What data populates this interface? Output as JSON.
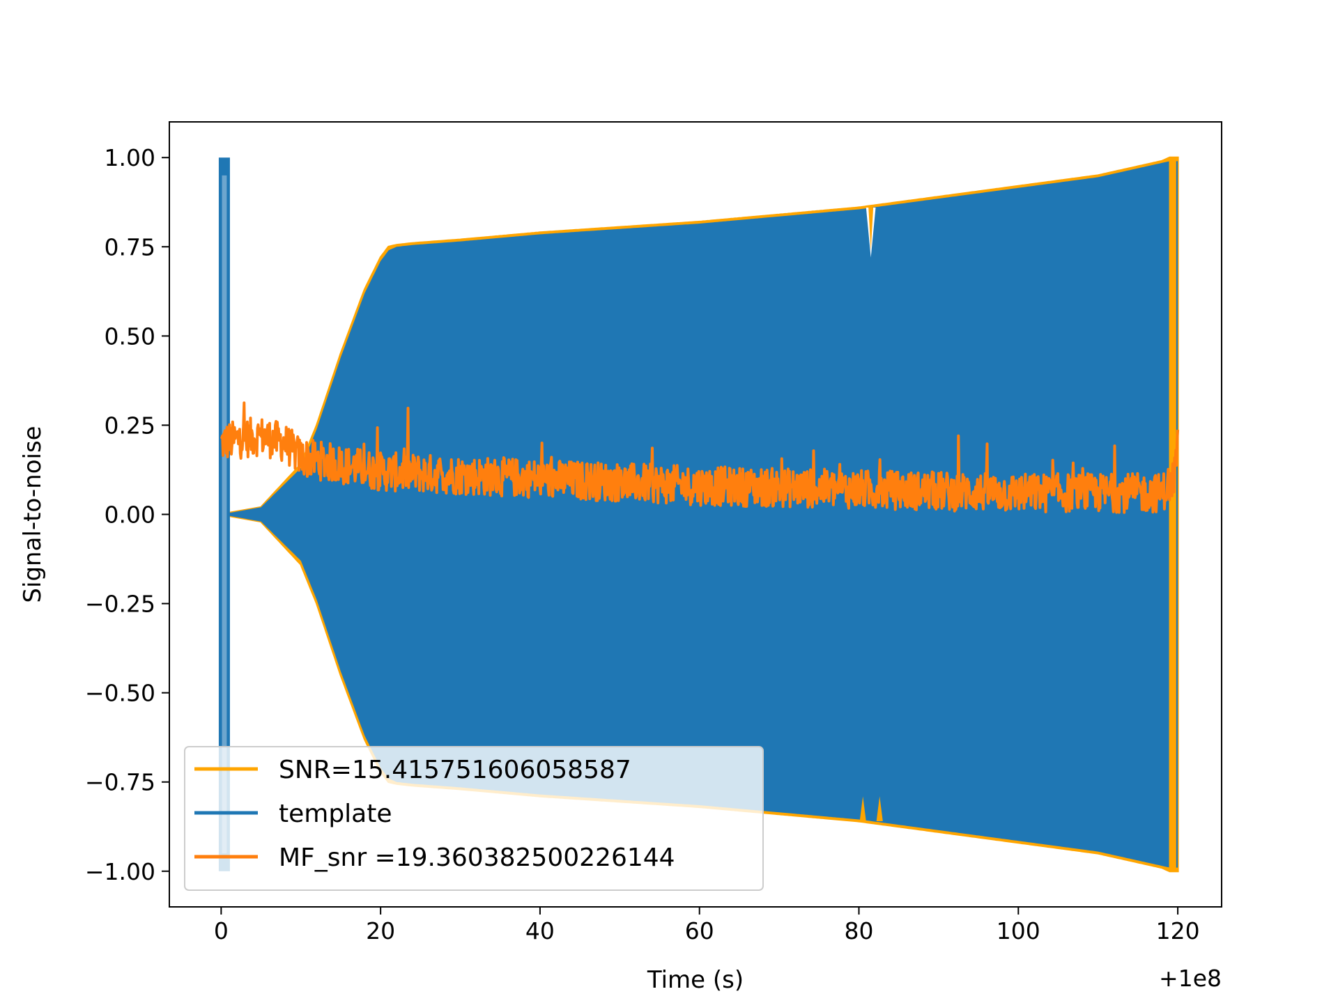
{
  "chart_data": {
    "type": "line",
    "title": "",
    "xlabel": "Time (s)",
    "ylabel": "Signal-to-noise",
    "x_offset_label": "+1e8",
    "xlim": [
      -6.5,
      125.5
    ],
    "ylim": [
      -1.1,
      1.1
    ],
    "x_ticks": [
      {
        "value": 0,
        "label": "0"
      },
      {
        "value": 20,
        "label": "20"
      },
      {
        "value": 40,
        "label": "40"
      },
      {
        "value": 60,
        "label": "60"
      },
      {
        "value": 80,
        "label": "80"
      },
      {
        "value": 100,
        "label": "100"
      },
      {
        "value": 120,
        "label": "120"
      }
    ],
    "y_ticks": [
      {
        "value": 1.0,
        "label": "1.00"
      },
      {
        "value": 0.75,
        "label": "0.75"
      },
      {
        "value": 0.5,
        "label": "0.50"
      },
      {
        "value": 0.25,
        "label": "0.25"
      },
      {
        "value": 0.0,
        "label": "0.00"
      },
      {
        "value": -0.25,
        "label": "−0.25"
      },
      {
        "value": -0.5,
        "label": "−0.50"
      },
      {
        "value": -0.75,
        "label": "−0.75"
      },
      {
        "value": -1.0,
        "label": "−1.00"
      }
    ],
    "grid": false,
    "legend_position": "lower-left",
    "series": [
      {
        "name": "SNR=15.415751606058587",
        "color": "#ffa500",
        "kind": "oscillating-envelope",
        "envelope_x": [
          0,
          5,
          10,
          12,
          15,
          18,
          20,
          21,
          22,
          24,
          30,
          40,
          60,
          80,
          100,
          110,
          118,
          119,
          119.5,
          120
        ],
        "envelope_y": [
          0.0,
          0.02,
          0.14,
          0.25,
          0.45,
          0.63,
          0.72,
          0.75,
          0.755,
          0.76,
          0.77,
          0.79,
          0.82,
          0.86,
          0.92,
          0.95,
          0.99,
          1.0,
          1.0,
          1.0
        ]
      },
      {
        "name": "template",
        "color": "#1f77b4",
        "kind": "oscillating-envelope",
        "envelope_x": [
          0,
          5,
          10,
          12,
          15,
          18,
          20,
          21,
          22,
          24,
          30,
          40,
          60,
          80,
          100,
          110,
          118,
          119,
          119.5,
          120
        ],
        "envelope_y": [
          0.0,
          0.02,
          0.13,
          0.24,
          0.44,
          0.62,
          0.71,
          0.74,
          0.75,
          0.755,
          0.765,
          0.785,
          0.815,
          0.855,
          0.915,
          0.945,
          0.985,
          0.99,
          0.99,
          0.99
        ]
      },
      {
        "name": " MF_snr =19.360382500226144",
        "color": "#ff7f0e",
        "kind": "noisy-line",
        "trend_x": [
          0,
          2,
          5,
          8,
          10,
          20,
          40,
          60,
          80,
          100,
          118,
          119.5,
          120
        ],
        "trend_y": [
          0.2,
          0.21,
          0.22,
          0.2,
          0.16,
          0.12,
          0.1,
          0.08,
          0.07,
          0.06,
          0.06,
          0.1,
          0.2
        ]
      }
    ]
  }
}
